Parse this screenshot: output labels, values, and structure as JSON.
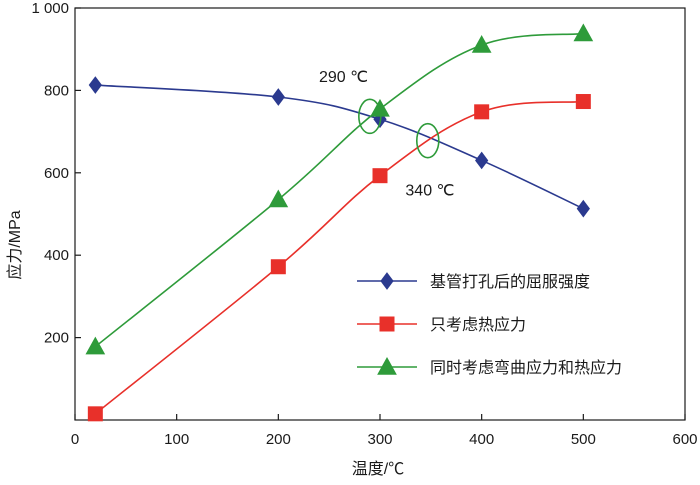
{
  "chart_data": {
    "type": "line",
    "title": "",
    "xlabel": "温度/℃",
    "ylabel": "应力/MPa",
    "xlim": [
      0,
      600
    ],
    "ylim": [
      0,
      1000
    ],
    "xticks": [
      0,
      100,
      200,
      300,
      400,
      500,
      600
    ],
    "yticks": [
      200,
      400,
      600,
      800,
      1000
    ],
    "xtick_labels": [
      "0",
      "100",
      "200",
      "300",
      "400",
      "500",
      "600"
    ],
    "ytick_labels": [
      "200",
      "400",
      "600",
      "800",
      "1 000"
    ],
    "grid": false,
    "legend_position": "bottom-right",
    "series": [
      {
        "name": "基管打孔后的屈服强度",
        "marker": "diamond",
        "color": "#2b3a8f",
        "x": [
          20,
          200,
          300,
          400,
          500
        ],
        "y": [
          813,
          784,
          730,
          630,
          513
        ]
      },
      {
        "name": "只考虑热应力",
        "marker": "square",
        "color": "#e8302a",
        "x": [
          20,
          200,
          300,
          400,
          500
        ],
        "y": [
          15,
          372,
          593,
          748,
          773
        ]
      },
      {
        "name": "同时考虑弯曲应力和热应力",
        "marker": "triangle",
        "color": "#2e9b3a",
        "x": [
          20,
          200,
          300,
          400,
          500
        ],
        "y": [
          178,
          535,
          755,
          910,
          938
        ]
      }
    ],
    "annotations": [
      {
        "text": "290 ℃",
        "x": 290,
        "y": 737,
        "label_x": 240,
        "label_y": 820
      },
      {
        "text": "340 ℃",
        "x": 347,
        "y": 678,
        "label_x": 325,
        "label_y": 545
      }
    ]
  }
}
